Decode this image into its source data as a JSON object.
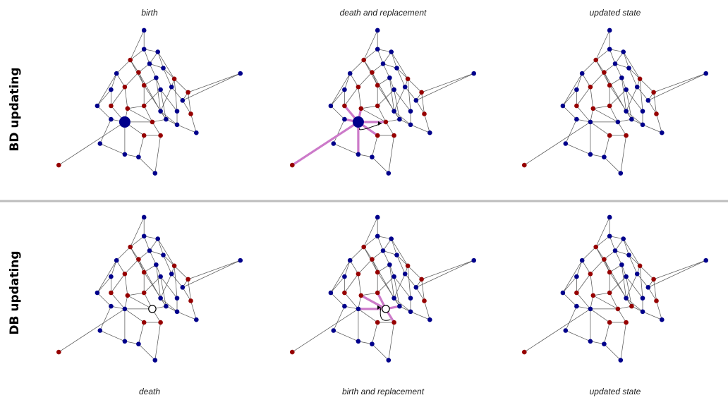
{
  "row_labels": {
    "top": "BD updating",
    "bottom": "DB updating"
  },
  "top_captions": [
    "birth",
    "death and replacement",
    "updated state"
  ],
  "bottom_captions": [
    "death",
    "birth and replacement",
    "updated state"
  ],
  "colors": {
    "blue": "#00008b",
    "red": "#960000",
    "edge": "#5a5a5a",
    "highlight": "#cc7ac9",
    "separator": "#bdbdbd"
  },
  "network": {
    "nodes": [
      [
        -0.1,
        -1.4
      ],
      [
        -0.1,
        -1.05
      ],
      [
        0.15,
        -1.0
      ],
      [
        -0.35,
        -0.85
      ],
      [
        0.0,
        -0.78
      ],
      [
        0.25,
        -0.7
      ],
      [
        -0.6,
        -0.6
      ],
      [
        -0.2,
        -0.62
      ],
      [
        0.12,
        -0.52
      ],
      [
        0.45,
        -0.5
      ],
      [
        0.7,
        -0.25
      ],
      [
        1.65,
        -0.6
      ],
      [
        -0.7,
        -0.3
      ],
      [
        -0.45,
        -0.35
      ],
      [
        -0.1,
        -0.38
      ],
      [
        0.2,
        -0.3
      ],
      [
        0.4,
        -0.35
      ],
      [
        0.6,
        -0.1
      ],
      [
        -0.95,
        0.0
      ],
      [
        -0.7,
        0.0
      ],
      [
        -0.4,
        0.05
      ],
      [
        -0.1,
        0.0
      ],
      [
        0.2,
        0.1
      ],
      [
        0.5,
        0.1
      ],
      [
        0.75,
        0.15
      ],
      [
        -0.7,
        0.25
      ],
      [
        -0.45,
        0.3
      ],
      [
        0.05,
        0.3
      ],
      [
        0.3,
        0.25
      ],
      [
        0.5,
        0.35
      ],
      [
        0.85,
        0.5
      ],
      [
        0.2,
        0.55
      ],
      [
        -0.1,
        0.55
      ],
      [
        -0.9,
        0.7
      ],
      [
        -0.45,
        0.9
      ],
      [
        -0.2,
        0.95
      ],
      [
        0.1,
        1.25
      ],
      [
        -1.65,
        1.1
      ]
    ],
    "edges": [
      [
        0,
        1
      ],
      [
        1,
        2
      ],
      [
        1,
        3
      ],
      [
        1,
        4
      ],
      [
        2,
        5
      ],
      [
        2,
        9
      ],
      [
        3,
        6
      ],
      [
        3,
        7
      ],
      [
        4,
        7
      ],
      [
        4,
        5
      ],
      [
        4,
        8
      ],
      [
        5,
        9
      ],
      [
        5,
        16
      ],
      [
        6,
        12
      ],
      [
        6,
        13
      ],
      [
        7,
        13
      ],
      [
        7,
        14
      ],
      [
        8,
        14
      ],
      [
        8,
        15
      ],
      [
        8,
        22
      ],
      [
        9,
        10
      ],
      [
        9,
        16
      ],
      [
        10,
        11
      ],
      [
        10,
        17
      ],
      [
        10,
        24
      ],
      [
        12,
        18
      ],
      [
        12,
        19
      ],
      [
        13,
        19
      ],
      [
        13,
        20
      ],
      [
        14,
        21
      ],
      [
        15,
        21
      ],
      [
        15,
        23
      ],
      [
        16,
        22
      ],
      [
        16,
        17
      ],
      [
        17,
        24
      ],
      [
        18,
        25
      ],
      [
        19,
        26
      ],
      [
        20,
        21
      ],
      [
        20,
        26
      ],
      [
        21,
        27
      ],
      [
        22,
        28
      ],
      [
        23,
        29
      ],
      [
        24,
        30
      ],
      [
        25,
        26
      ],
      [
        25,
        33
      ],
      [
        26,
        27
      ],
      [
        26,
        32
      ],
      [
        26,
        34
      ],
      [
        26,
        37
      ],
      [
        27,
        28
      ],
      [
        27,
        31
      ],
      [
        28,
        29
      ],
      [
        29,
        30
      ],
      [
        31,
        32
      ],
      [
        31,
        36
      ],
      [
        32,
        35
      ],
      [
        33,
        34
      ],
      [
        34,
        35
      ],
      [
        35,
        36
      ],
      [
        3,
        14
      ],
      [
        7,
        22
      ],
      [
        9,
        23
      ],
      [
        14,
        28
      ],
      [
        20,
        27
      ],
      [
        15,
        28
      ],
      [
        22,
        29
      ],
      [
        6,
        18
      ],
      [
        2,
        4
      ],
      [
        11,
        17
      ],
      [
        0,
        3
      ]
    ]
  },
  "panels": [
    {
      "color_key": "B.BRBB.RBRRB.RRBBB.RRRBBR.BRBBBRRBBB.R",
      "big_node": 26
    },
    {
      "color_key": "B.BRBB.RBRRB.RRBBB.RRRBBR.BRBBBRRBBB.R",
      "big_node": 26,
      "highlight_edges": [
        [
          26,
          27
        ],
        [
          26,
          32
        ],
        [
          26,
          34
        ],
        [
          26,
          37
        ],
        [
          26,
          19
        ],
        [
          26,
          20
        ],
        [
          26,
          25
        ]
      ],
      "arrow": "curved"
    },
    {
      "color_key": "B.BRBB.RBRRB.RRBBB.RRRBBR.BBBBBRRBBB.R"
    },
    {
      "color_key": "B.BRBB.RBRRB.RRBBB.RRRBBR.BRBBBRRBBB.R",
      "empty_node": 27
    },
    {
      "color_key": "B.BRBB.RBRRB.RRBBB.RRRBBR.BRBBBRRBBB.R",
      "empty_node": 27,
      "highlight_edges": [
        [
          27,
          21
        ],
        [
          27,
          26
        ],
        [
          27,
          28
        ],
        [
          27,
          31
        ],
        [
          27,
          20
        ]
      ],
      "arrow": "curved"
    },
    {
      "color_key": "B.BRBB.RBRRB.RRBBB.RRRBBR.BRRBBRRBBB.R"
    }
  ]
}
